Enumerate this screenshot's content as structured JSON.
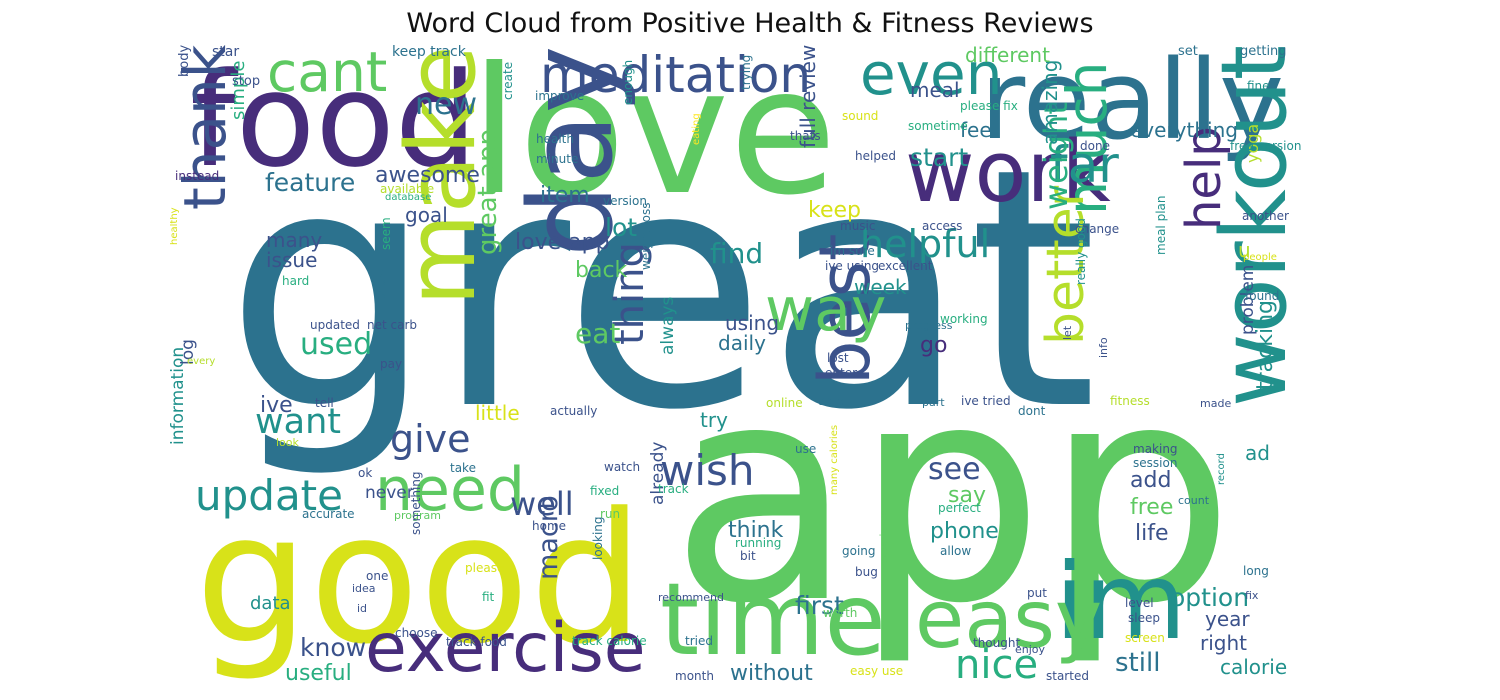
{
  "title": "Word Cloud from Positive Health & Fitness Reviews",
  "palette": {
    "c1": "#440154",
    "c2": "#472d7b",
    "c3": "#3b528b",
    "c4": "#2c728e",
    "c5": "#21918c",
    "c6": "#28ae80",
    "c7": "#5ec962",
    "c8": "#addc30",
    "c9": "#fde725"
  },
  "words": [
    {
      "text": "great",
      "color": "#2c728e"
    },
    {
      "text": "app",
      "color": "#5ec962"
    },
    {
      "text": "love",
      "color": "#5ec962"
    },
    {
      "text": "good",
      "color": "#d8e219"
    },
    {
      "text": "food",
      "color": "#472d7b"
    },
    {
      "text": "really",
      "color": "#2c728e"
    },
    {
      "text": "work",
      "color": "#472d7b"
    },
    {
      "text": "day",
      "color": "#3b528b"
    },
    {
      "text": "time",
      "color": "#5ec962"
    },
    {
      "text": "im",
      "color": "#21918c"
    },
    {
      "text": "workout",
      "color": "#21918c"
    },
    {
      "text": "make",
      "color": "#b5de2b"
    },
    {
      "text": "exercise",
      "color": "#472d7b"
    },
    {
      "text": "easy",
      "color": "#5ec962"
    },
    {
      "text": "best",
      "color": "#3b528b"
    },
    {
      "text": "need",
      "color": "#5ec962"
    },
    {
      "text": "meditation",
      "color": "#3b528b"
    },
    {
      "text": "even",
      "color": "#21918c"
    },
    {
      "text": "cant",
      "color": "#5ec962"
    },
    {
      "text": "way",
      "color": "#5ec962"
    },
    {
      "text": "much",
      "color": "#28ae80"
    },
    {
      "text": "thank",
      "color": "#3b528b"
    },
    {
      "text": "far",
      "color": "#21918c"
    },
    {
      "text": "help",
      "color": "#472d7b"
    },
    {
      "text": "better",
      "color": "#b5de2b"
    },
    {
      "text": "update",
      "color": "#21918c"
    },
    {
      "text": "wish",
      "color": "#3b528b"
    },
    {
      "text": "helpful",
      "color": "#21918c"
    },
    {
      "text": "thing",
      "color": "#3b528b"
    },
    {
      "text": "give",
      "color": "#3b528b"
    },
    {
      "text": "nice",
      "color": "#28ae80"
    },
    {
      "text": "want",
      "color": "#21918c"
    },
    {
      "text": "new",
      "color": "#2c728e"
    },
    {
      "text": "well",
      "color": "#3b528b"
    },
    {
      "text": "weight",
      "color": "#28ae80"
    },
    {
      "text": "used",
      "color": "#28ae80"
    },
    {
      "text": "see",
      "color": "#3b528b"
    },
    {
      "text": "macro",
      "color": "#3b528b"
    },
    {
      "text": "great app",
      "color": "#5ec962"
    },
    {
      "text": "feature",
      "color": "#2c728e"
    },
    {
      "text": "find",
      "color": "#21918c"
    },
    {
      "text": "eat",
      "color": "#5ec962"
    },
    {
      "text": "first",
      "color": "#2c728e"
    },
    {
      "text": "still",
      "color": "#2c728e"
    },
    {
      "text": "know",
      "color": "#3b528b"
    },
    {
      "text": "option",
      "color": "#21918c"
    },
    {
      "text": "tracking",
      "color": "#21918c"
    },
    {
      "text": "start",
      "color": "#21918c"
    },
    {
      "text": "lot",
      "color": "#21918c"
    },
    {
      "text": "love app",
      "color": "#3b528b"
    },
    {
      "text": "back",
      "color": "#5ec962"
    },
    {
      "text": "without",
      "color": "#2c728e"
    },
    {
      "text": "useful",
      "color": "#28ae80"
    },
    {
      "text": "awesome",
      "color": "#3b528b"
    },
    {
      "text": "amazing",
      "color": "#21918c"
    },
    {
      "text": "item",
      "color": "#2c728e"
    },
    {
      "text": "everything",
      "color": "#2c728e"
    },
    {
      "text": "issue",
      "color": "#3b528b"
    },
    {
      "text": "many",
      "color": "#3b528b"
    },
    {
      "text": "keep",
      "color": "#d8e219"
    },
    {
      "text": "full review",
      "color": "#3b528b"
    },
    {
      "text": "feel",
      "color": "#2c728e"
    },
    {
      "text": "meal",
      "color": "#3b528b"
    },
    {
      "text": "different",
      "color": "#5ec962"
    },
    {
      "text": "ive",
      "color": "#3b528b"
    },
    {
      "text": "say",
      "color": "#5ec962"
    },
    {
      "text": "add",
      "color": "#3b528b"
    },
    {
      "text": "life",
      "color": "#3b528b"
    },
    {
      "text": "free",
      "color": "#5ec962"
    },
    {
      "text": "go",
      "color": "#472d7b"
    },
    {
      "text": "using",
      "color": "#3b528b"
    },
    {
      "text": "daily",
      "color": "#2c728e"
    },
    {
      "text": "week",
      "color": "#21918c"
    },
    {
      "text": "think",
      "color": "#2c728e"
    },
    {
      "text": "phone",
      "color": "#21918c"
    },
    {
      "text": "goal",
      "color": "#3b528b"
    },
    {
      "text": "try",
      "color": "#21918c"
    },
    {
      "text": "always",
      "color": "#21918c"
    },
    {
      "text": "little",
      "color": "#d8e219"
    },
    {
      "text": "right",
      "color": "#3b528b"
    },
    {
      "text": "calorie",
      "color": "#21918c"
    },
    {
      "text": "year",
      "color": "#3b528b"
    },
    {
      "text": "problem",
      "color": "#3b528b"
    },
    {
      "text": "data",
      "color": "#21918c"
    },
    {
      "text": "information",
      "color": "#21918c"
    },
    {
      "text": "simple",
      "color": "#28ae80"
    },
    {
      "text": "log",
      "color": "#3b528b"
    },
    {
      "text": "never",
      "color": "#3b528b"
    },
    {
      "text": "already",
      "color": "#3b528b"
    },
    {
      "text": "ad",
      "color": "#21918c"
    },
    {
      "text": "u",
      "color": "#b5de2b"
    },
    {
      "text": "yoga",
      "color": "#b5de2b"
    },
    {
      "text": "keep track",
      "color": "#2c728e"
    },
    {
      "text": "star",
      "color": "#3b528b"
    },
    {
      "text": "body",
      "color": "#3b528b"
    },
    {
      "text": "stop",
      "color": "#3b528b"
    },
    {
      "text": "improve",
      "color": "#2c728e"
    },
    {
      "text": "create",
      "color": "#21918c"
    },
    {
      "text": "health",
      "color": "#2c728e"
    },
    {
      "text": "minute",
      "color": "#2c728e"
    },
    {
      "text": "enough",
      "color": "#21918c"
    },
    {
      "text": "trying",
      "color": "#2c728e"
    },
    {
      "text": "sound",
      "color": "#d8e219"
    },
    {
      "text": "please fix",
      "color": "#28ae80"
    },
    {
      "text": "sometime",
      "color": "#28ae80"
    },
    {
      "text": "done",
      "color": "#3b528b"
    },
    {
      "text": "helped",
      "color": "#3b528b"
    },
    {
      "text": "set",
      "color": "#2c728e"
    },
    {
      "text": "getting",
      "color": "#2c728e"
    },
    {
      "text": "fine",
      "color": "#21918c"
    },
    {
      "text": "thats",
      "color": "#3b528b"
    },
    {
      "text": "free version",
      "color": "#21918c"
    },
    {
      "text": "instead",
      "color": "#472d7b"
    },
    {
      "text": "available",
      "color": "#b5de2b"
    },
    {
      "text": "database",
      "color": "#28ae80"
    },
    {
      "text": "eating",
      "color": "#fde725"
    },
    {
      "text": "version",
      "color": "#2c728e"
    },
    {
      "text": "im sure",
      "color": "#2c728e"
    },
    {
      "text": "weight loss",
      "color": "#2c728e"
    },
    {
      "text": "music",
      "color": "#3b528b"
    },
    {
      "text": "access",
      "color": "#3b528b"
    },
    {
      "text": "change",
      "color": "#3b528b"
    },
    {
      "text": "ive using",
      "color": "#3b528b"
    },
    {
      "text": "excellent",
      "color": "#3b528b"
    },
    {
      "text": "another",
      "color": "#3b528b"
    },
    {
      "text": "people",
      "color": "#d8e219"
    },
    {
      "text": "healthy",
      "color": "#d8e219"
    },
    {
      "text": "hard",
      "color": "#28ae80"
    },
    {
      "text": "seem",
      "color": "#28ae80"
    },
    {
      "text": "show",
      "color": "#2c728e"
    },
    {
      "text": "meal plan",
      "color": "#21918c"
    },
    {
      "text": "really good",
      "color": "#21918c"
    },
    {
      "text": "found",
      "color": "#2c728e"
    },
    {
      "text": "updated",
      "color": "#3b528b"
    },
    {
      "text": "net carb",
      "color": "#3b528b"
    },
    {
      "text": "progress",
      "color": "#2c728e"
    },
    {
      "text": "working",
      "color": "#28ae80"
    },
    {
      "text": "let",
      "color": "#3b528b"
    },
    {
      "text": "every",
      "color": "#b5de2b"
    },
    {
      "text": "pay",
      "color": "#3b528b"
    },
    {
      "text": "lost",
      "color": "#3b528b"
    },
    {
      "text": "enter",
      "color": "#3b528b"
    },
    {
      "text": "info",
      "color": "#3b528b"
    },
    {
      "text": "online",
      "color": "#b5de2b"
    },
    {
      "text": "able",
      "color": "#2c728e"
    },
    {
      "text": "part",
      "color": "#2c728e"
    },
    {
      "text": "ive tried",
      "color": "#3b528b"
    },
    {
      "text": "dont",
      "color": "#2c728e"
    },
    {
      "text": "fitness",
      "color": "#b5de2b"
    },
    {
      "text": "made",
      "color": "#3b528b"
    },
    {
      "text": "tell",
      "color": "#3b528b"
    },
    {
      "text": "actually",
      "color": "#3b528b"
    },
    {
      "text": "look",
      "color": "#b5de2b"
    },
    {
      "text": "ok",
      "color": "#3b528b"
    },
    {
      "text": "take",
      "color": "#2c728e"
    },
    {
      "text": "watch",
      "color": "#3b528b"
    },
    {
      "text": "use",
      "color": "#2c728e"
    },
    {
      "text": "making",
      "color": "#3b528b"
    },
    {
      "text": "session",
      "color": "#2c728e"
    },
    {
      "text": "count",
      "color": "#2c728e"
    },
    {
      "text": "record",
      "color": "#21918c"
    },
    {
      "text": "fixed",
      "color": "#28ae80"
    },
    {
      "text": "track",
      "color": "#28ae80"
    },
    {
      "text": "accurate",
      "color": "#2c728e"
    },
    {
      "text": "program",
      "color": "#5ec962"
    },
    {
      "text": "home",
      "color": "#3b528b"
    },
    {
      "text": "run",
      "color": "#5ec962"
    },
    {
      "text": "perfect",
      "color": "#28ae80"
    },
    {
      "text": "running",
      "color": "#28ae80"
    },
    {
      "text": "bit",
      "color": "#3b528b"
    },
    {
      "text": "allow",
      "color": "#2c728e"
    },
    {
      "text": "many calories",
      "color": "#d8e219"
    },
    {
      "text": "going",
      "color": "#2c728e"
    },
    {
      "text": "long",
      "color": "#2c728e"
    },
    {
      "text": "something",
      "color": "#3b528b"
    },
    {
      "text": "one",
      "color": "#3b528b"
    },
    {
      "text": "please",
      "color": "#d8e219"
    },
    {
      "text": "idea",
      "color": "#3b528b"
    },
    {
      "text": "fit",
      "color": "#28ae80"
    },
    {
      "text": "looking",
      "color": "#2c728e"
    },
    {
      "text": "recommend",
      "color": "#3b528b"
    },
    {
      "text": "got",
      "color": "#d8e219"
    },
    {
      "text": "id",
      "color": "#3b528b"
    },
    {
      "text": "bug",
      "color": "#3b528b"
    },
    {
      "text": "worth",
      "color": "#5ec962"
    },
    {
      "text": "experience",
      "color": "#5ec962"
    },
    {
      "text": "put",
      "color": "#3b528b"
    },
    {
      "text": "level",
      "color": "#3b528b"
    },
    {
      "text": "fix",
      "color": "#3b528b"
    },
    {
      "text": "sleep",
      "color": "#3b528b"
    },
    {
      "text": "screen",
      "color": "#d8e219"
    },
    {
      "text": "choose",
      "color": "#3b528b"
    },
    {
      "text": "track food",
      "color": "#3b528b"
    },
    {
      "text": "track calorie",
      "color": "#28ae80"
    },
    {
      "text": "tried",
      "color": "#2c728e"
    },
    {
      "text": "month",
      "color": "#3b528b"
    },
    {
      "text": "easy use",
      "color": "#d8e219"
    },
    {
      "text": "thought",
      "color": "#3b528b"
    },
    {
      "text": "enjoy",
      "color": "#3b528b"
    },
    {
      "text": "started",
      "color": "#3b528b"
    }
  ]
}
